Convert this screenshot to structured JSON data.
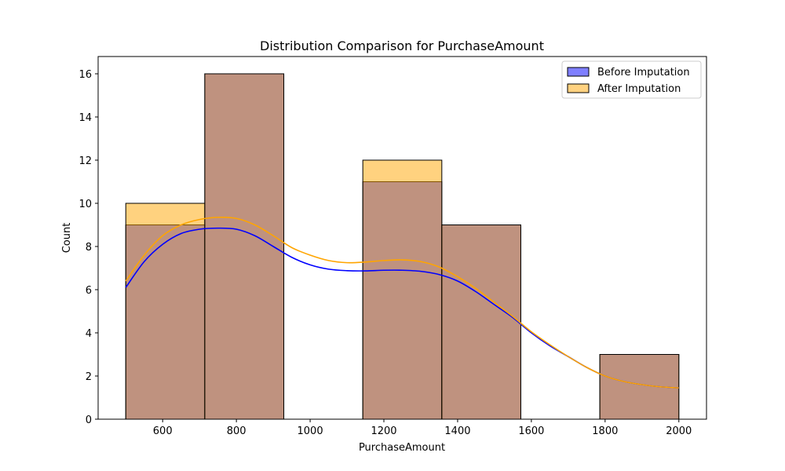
{
  "chart_data": {
    "type": "histogram",
    "title": "Distribution Comparison for PurchaseAmount",
    "xlabel": "PurchaseAmount",
    "ylabel": "Count",
    "xlim": [
      425,
      2075
    ],
    "ylim": [
      0,
      16.8
    ],
    "x_ticks": [
      600,
      800,
      1000,
      1200,
      1400,
      1600,
      1800,
      2000
    ],
    "y_ticks": [
      0,
      2,
      4,
      6,
      8,
      10,
      12,
      14,
      16
    ],
    "bin_edges": [
      500,
      714.29,
      928.57,
      1142.86,
      1357.14,
      1571.43,
      1785.71,
      2000
    ],
    "legend_position": "top-right",
    "series": [
      {
        "name": "Before Imputation",
        "color": "#0000ff",
        "fill_color": "#7f7fff",
        "counts": [
          9,
          16,
          0,
          11,
          9,
          0,
          3
        ],
        "kde": [
          [
            500,
            6.1
          ],
          [
            550,
            7.3
          ],
          [
            600,
            8.1
          ],
          [
            650,
            8.6
          ],
          [
            700,
            8.8
          ],
          [
            750,
            8.85
          ],
          [
            800,
            8.8
          ],
          [
            850,
            8.5
          ],
          [
            900,
            8.0
          ],
          [
            950,
            7.5
          ],
          [
            1000,
            7.15
          ],
          [
            1050,
            6.95
          ],
          [
            1100,
            6.88
          ],
          [
            1150,
            6.87
          ],
          [
            1200,
            6.9
          ],
          [
            1250,
            6.9
          ],
          [
            1300,
            6.85
          ],
          [
            1350,
            6.7
          ],
          [
            1400,
            6.4
          ],
          [
            1450,
            5.9
          ],
          [
            1500,
            5.3
          ],
          [
            1550,
            4.7
          ],
          [
            1600,
            4.0
          ],
          [
            1650,
            3.4
          ],
          [
            1700,
            2.9
          ],
          [
            1750,
            2.4
          ],
          [
            1800,
            2.0
          ],
          [
            1850,
            1.75
          ],
          [
            1900,
            1.6
          ],
          [
            1950,
            1.5
          ],
          [
            2000,
            1.45
          ]
        ]
      },
      {
        "name": "After Imputation",
        "color": "#ffa500",
        "fill_color": "#ffd280",
        "counts": [
          10,
          16,
          0,
          12,
          9,
          0,
          3
        ],
        "kde": [
          [
            500,
            6.4
          ],
          [
            550,
            7.6
          ],
          [
            600,
            8.5
          ],
          [
            650,
            9.0
          ],
          [
            700,
            9.25
          ],
          [
            750,
            9.35
          ],
          [
            800,
            9.3
          ],
          [
            850,
            9.0
          ],
          [
            900,
            8.5
          ],
          [
            950,
            7.95
          ],
          [
            1000,
            7.6
          ],
          [
            1050,
            7.35
          ],
          [
            1100,
            7.25
          ],
          [
            1150,
            7.28
          ],
          [
            1200,
            7.35
          ],
          [
            1250,
            7.38
          ],
          [
            1300,
            7.3
          ],
          [
            1350,
            7.05
          ],
          [
            1400,
            6.6
          ],
          [
            1450,
            6.05
          ],
          [
            1500,
            5.4
          ],
          [
            1550,
            4.75
          ],
          [
            1600,
            4.05
          ],
          [
            1650,
            3.45
          ],
          [
            1700,
            2.9
          ],
          [
            1750,
            2.4
          ],
          [
            1800,
            2.0
          ],
          [
            1850,
            1.75
          ],
          [
            1900,
            1.6
          ],
          [
            1950,
            1.5
          ],
          [
            2000,
            1.45
          ]
        ]
      }
    ]
  }
}
